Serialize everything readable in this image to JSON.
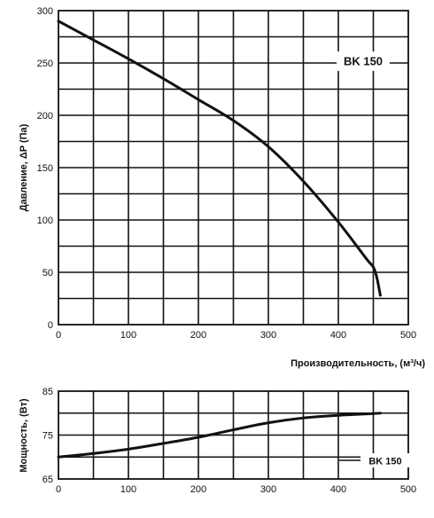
{
  "chart_data": [
    {
      "type": "line",
      "title": "",
      "xlabel": "Производительность, (м³/ч)",
      "ylabel": "Давление, ΔP (Па)",
      "xlim": [
        0,
        500
      ],
      "ylim": [
        0,
        300
      ],
      "x_ticks": [
        0,
        100,
        200,
        300,
        400,
        500
      ],
      "y_ticks": [
        0,
        50,
        100,
        150,
        200,
        250,
        300
      ],
      "grid": true,
      "series": [
        {
          "name": "BK 150",
          "x": [
            0,
            50,
            100,
            150,
            200,
            250,
            300,
            350,
            400,
            440,
            450,
            455,
            460
          ],
          "y": [
            290,
            272,
            254,
            235,
            215,
            195,
            170,
            137,
            98,
            63,
            55,
            45,
            28
          ]
        }
      ]
    },
    {
      "type": "line",
      "title": "",
      "xlabel": "",
      "ylabel": "Мощность, (Вт)",
      "xlim": [
        0,
        500
      ],
      "ylim": [
        65,
        85
      ],
      "x_ticks": [
        0,
        100,
        200,
        300,
        400,
        500
      ],
      "y_ticks": [
        65,
        75,
        85
      ],
      "grid": true,
      "series": [
        {
          "name": "BK 150",
          "x": [
            0,
            50,
            100,
            150,
            200,
            250,
            300,
            350,
            400,
            450,
            460
          ],
          "y": [
            70,
            70.8,
            71.8,
            73.1,
            74.5,
            76.2,
            77.8,
            78.9,
            79.5,
            79.9,
            80
          ]
        }
      ]
    }
  ]
}
